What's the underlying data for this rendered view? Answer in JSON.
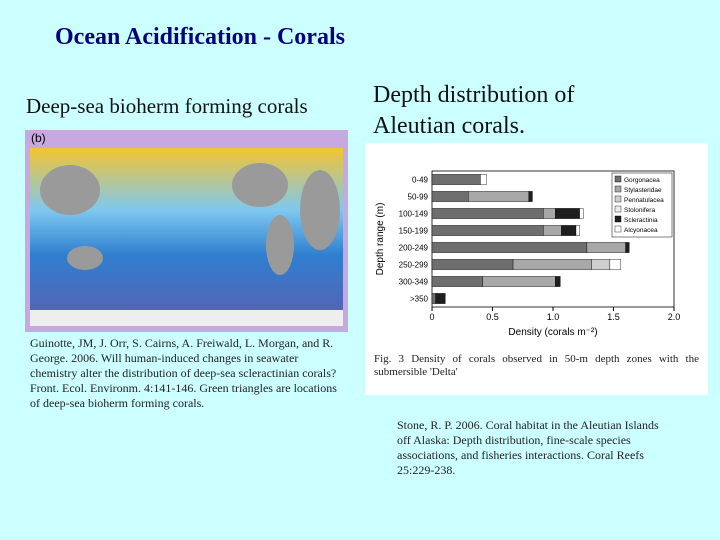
{
  "header": {
    "title": "Ocean  Acidification - Corals"
  },
  "left": {
    "heading": "Deep-sea bioherm forming corals",
    "figure_label": "(b)",
    "caption": "Guinotte, JM, J. Orr, S. Cairns, A. Freiwald, L. Morgan, and R. George. 2006. Will human-induced changes in seawater chemistry alter the distribution of deep-sea scleractinian corals? Front. Ecol. Environm. 4:141-146. Green triangles are locations of deep-sea bioherm forming corals."
  },
  "right": {
    "heading_lines": [
      "Depth distribution of",
      "Aleutian corals."
    ],
    "citation": "Stone, R. P. 2006. Coral habitat in the Aleutian Islands off Alaska: Depth distribution, fine-scale species associations, and fisheries interactions. Coral Reefs 25:229-238."
  },
  "chart_data": {
    "type": "bar",
    "orientation": "horizontal",
    "stacked": true,
    "caption": "Fig. 3 Density of corals observed in 50-m depth zones with the submersible 'Delta'",
    "xlabel": "Density (corals m⁻²)",
    "ylabel": "Depth range (m)",
    "categories": [
      "0-49",
      "50-99",
      "100-149",
      "150-199",
      "200-249",
      "250-299",
      "300-349",
      ">350"
    ],
    "series": [
      {
        "name": "Gorgonacea",
        "color": "#6e6e6e",
        "values": [
          0.4,
          0.3,
          0.92,
          0.92,
          1.28,
          0.67,
          0.42,
          0.03
        ]
      },
      {
        "name": "Stylasteridae",
        "color": "#a8a8a8",
        "values": [
          0,
          0.5,
          0.1,
          0.15,
          0.32,
          0.65,
          0.6,
          0
        ]
      },
      {
        "name": "Pennatulacea",
        "color": "#cfcfcf",
        "values": [
          0,
          0,
          0,
          0,
          0,
          0.15,
          0,
          0
        ]
      },
      {
        "name": "Stolonifera",
        "color": "#ececec",
        "values": [
          0,
          0,
          0,
          0,
          0,
          0,
          0,
          0
        ]
      },
      {
        "name": "Scleractinia",
        "color": "#1e1e1e",
        "values": [
          0,
          0.03,
          0.2,
          0.12,
          0.03,
          0,
          0.04,
          0.08
        ]
      },
      {
        "name": "Alcyonacea",
        "color": "#ffffff",
        "values": [
          0.05,
          0,
          0.03,
          0.03,
          0,
          0.09,
          0,
          0
        ]
      }
    ],
    "xlim": [
      0,
      2
    ],
    "xticks": [
      0,
      0.5,
      {
        "value": 1,
        "label": "1.0"
      },
      1.5,
      {
        "value": 2,
        "label": "2.0"
      }
    ],
    "legend": "upper right"
  }
}
